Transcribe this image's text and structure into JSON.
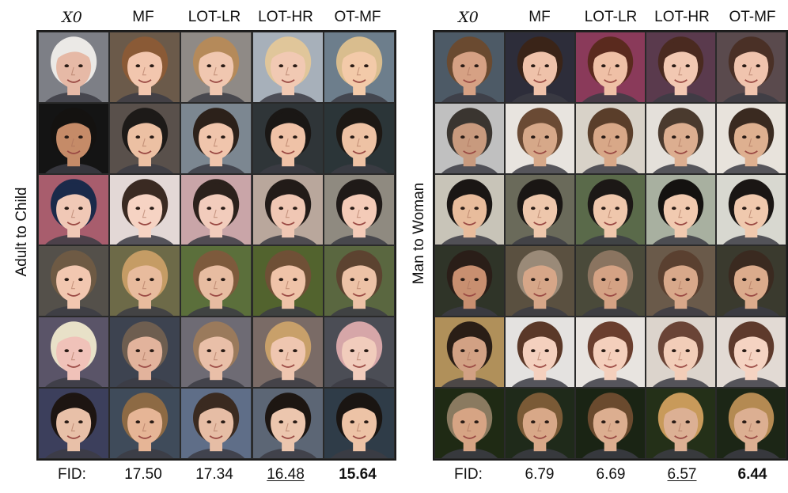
{
  "panels": [
    {
      "side_label": "Adult to Child",
      "headers": [
        "X0",
        "MF",
        "LOT-LR",
        "LOT-HR",
        "OT-MF"
      ],
      "fid_label": "FID:",
      "fid_values": [
        "17.50",
        "17.34",
        "16.48",
        "15.64"
      ],
      "fid_underline_index": 2,
      "fid_bold_index": 3,
      "rows": [
        [
          "#7d7f86",
          "#6b5a4a",
          "#8f8a86",
          "#a7b0ba",
          "#6d7e8c"
        ],
        [
          "#141414",
          "#59504b",
          "#7c8791",
          "#2f3538",
          "#2b3538"
        ],
        [
          "#a85d6d",
          "#e3d8d6",
          "#c9a5a8",
          "#b9a79c",
          "#8f8a80"
        ],
        [
          "#54504a",
          "#6d6a48",
          "#5b6f3b",
          "#52632e",
          "#5a6740"
        ],
        [
          "#5a5468",
          "#3d4350",
          "#6e6b74",
          "#7a6b66",
          "#4b4d55"
        ],
        [
          "#3c3f5c",
          "#3f4b5a",
          "#5f6e88",
          "#5c6675",
          "#2f3c48"
        ]
      ],
      "skin": [
        [
          "#e6b9a6",
          "#f2c6ae",
          "#f0c7b0",
          "#f1c9b3",
          "#f3caa9"
        ],
        [
          "#c58b68",
          "#ecc0a3",
          "#f0c5ac",
          "#efc2a7",
          "#eec2a4"
        ],
        [
          "#f0c8b6",
          "#f6d3c3",
          "#f2ccbc",
          "#f0c7b4",
          "#f4cbb8"
        ],
        [
          "#f2c7b0",
          "#e8bb9d",
          "#e7bca1",
          "#efc3a8",
          "#edc2a6"
        ],
        [
          "#f0c2b9",
          "#e2b39c",
          "#e9bfa8",
          "#efc6b0",
          "#f1ccbc"
        ],
        [
          "#e8c0a8",
          "#e6b596",
          "#e6bda5",
          "#ecc6ae",
          "#edc3a6"
        ]
      ],
      "hair": [
        [
          "#ebe9e6",
          "#8a5a36",
          "#b58a5a",
          "#e0c69a",
          "#d9bd8e"
        ],
        [
          "#141210",
          "#1d1a18",
          "#2c211a",
          "#1a1715",
          "#1d1814"
        ],
        [
          "#1b2a4a",
          "#3a2a22",
          "#2b211c",
          "#221b18",
          "#1f1a18"
        ],
        [
          "#6e5a44",
          "#c59c65",
          "#7d5a3c",
          "#6f5036",
          "#5c4330"
        ],
        [
          "#e8e1c8",
          "#6e5e50",
          "#9a7a5c",
          "#c8a06a",
          "#d6a6a8"
        ],
        [
          "#1d1512",
          "#8d6a44",
          "#3a2a20",
          "#1d1612",
          "#1a1512"
        ]
      ]
    },
    {
      "side_label": "Man to Woman",
      "headers": [
        "X0",
        "MF",
        "LOT-LR",
        "LOT-HR",
        "OT-MF"
      ],
      "fid_label": "FID:",
      "fid_values": [
        "6.79",
        "6.69",
        "6.57",
        "6.44"
      ],
      "fid_underline_index": 2,
      "fid_bold_index": 3,
      "rows": [
        [
          "#4d5a66",
          "#2d2d3a",
          "#8a3a5a",
          "#5a3a4d",
          "#5a4a4d"
        ],
        [
          "#c0c0c0",
          "#e8e4df",
          "#d8d2c8",
          "#e4e0da",
          "#e8e3dc"
        ],
        [
          "#c8c4b8",
          "#6a6a5a",
          "#5a6a4a",
          "#a8b0a0",
          "#d8d8d0"
        ],
        [
          "#2f3428",
          "#5a5040",
          "#4a4a3a",
          "#6a5a4a",
          "#3a3a2e"
        ],
        [
          "#b0905a",
          "#e4e2e0",
          "#e8e4e0",
          "#dcd4cc",
          "#e2dad4"
        ],
        [
          "#1f2a14",
          "#1f2a1a",
          "#1a2414",
          "#243018",
          "#1c2616"
        ]
      ],
      "skin": [
        [
          "#d6a184",
          "#efc2aa",
          "#efc0a6",
          "#f2c8b2",
          "#f0c4ae"
        ],
        [
          "#c89a7e",
          "#d6a889",
          "#d8a888",
          "#dcae90",
          "#deb090"
        ],
        [
          "#e8bc9c",
          "#eec7ac",
          "#efc7ac",
          "#f1cab0",
          "#f0c9ae"
        ],
        [
          "#c88f70",
          "#d6a688",
          "#d4a284",
          "#d8a88a",
          "#dbab8c"
        ],
        [
          "#d2a184",
          "#f4d0be",
          "#f4cfbc",
          "#f2cdb8",
          "#f5d3c2"
        ],
        [
          "#d6a484",
          "#d8a888",
          "#dcae90",
          "#dcb094",
          "#dcaf92"
        ]
      ],
      "hair": [
        [
          "#6a4a30",
          "#3a2418",
          "#5a2a1e",
          "#4a2a20",
          "#4a3026"
        ],
        [
          "#3a3530",
          "#6a4a34",
          "#5a3e2a",
          "#4a3a2e",
          "#3a2a20"
        ],
        [
          "#1a1614",
          "#1a1614",
          "#1c1816",
          "#141210",
          "#1a1614"
        ],
        [
          "#2a1e18",
          "#9a8a78",
          "#8a7460",
          "#5a4030",
          "#3a2a20"
        ],
        [
          "#2a1e16",
          "#5a3828",
          "#6a3e2e",
          "#6a4436",
          "#5e3a2c"
        ],
        [
          "#8a7a60",
          "#7a5a36",
          "#6a4a2e",
          "#c89a5a",
          "#b48a52"
        ]
      ]
    }
  ]
}
